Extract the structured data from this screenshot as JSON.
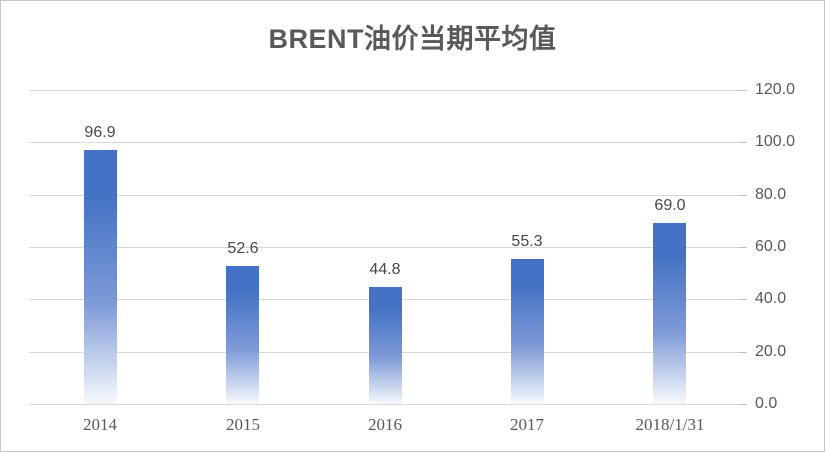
{
  "chart_data": {
    "type": "bar",
    "title": "BRENT油价当期平均值",
    "categories": [
      "2014",
      "2015",
      "2016",
      "2017",
      "2018/1/31"
    ],
    "values": [
      96.9,
      52.6,
      44.8,
      55.3,
      69.0
    ],
    "data_labels": [
      "96.9",
      "52.6",
      "44.8",
      "55.3",
      "69.0"
    ],
    "series_name": "BRENT油价当期平均值",
    "xlabel": "",
    "ylabel": "",
    "ylim": [
      0,
      120
    ],
    "y_tick_step": 20,
    "y_ticks": [
      "120.0",
      "100.0",
      "80.0",
      "60.0",
      "40.0",
      "20.0",
      "0.0"
    ],
    "axis_side": "right",
    "grid": true,
    "legend": false,
    "colors": {
      "bar_gradient_top": "#4472c4",
      "bar_gradient_mid": "#7d9ad7",
      "bar_gradient_low": "#c9d5ee",
      "bar_gradient_bottom": "#f7fafd",
      "gridline": "#d8d8d8",
      "tick_mark": "#bfbfbf",
      "tick_label": "#595959",
      "data_label": "#474747",
      "title": "#595959",
      "frame_border": "#c6c6c6",
      "background": "#ffffff"
    }
  }
}
